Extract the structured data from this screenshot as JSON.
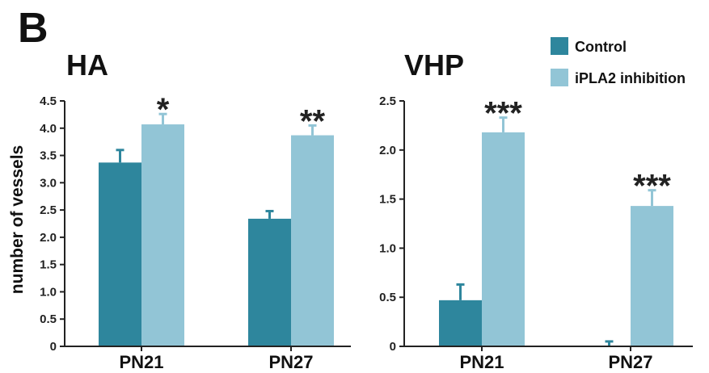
{
  "panel_label": "B",
  "legend": {
    "items": [
      {
        "label": "Control",
        "color": "#2e869d"
      },
      {
        "label": "iPLA2 inhibition",
        "color": "#92c5d6"
      }
    ]
  },
  "chart_data": [
    {
      "type": "bar",
      "title": "HA",
      "ylabel": "number of vessels",
      "xlabel": "",
      "categories": [
        "PN21",
        "PN27"
      ],
      "ylim": [
        0,
        4.5
      ],
      "yticks": [
        0,
        0.5,
        1.0,
        1.5,
        2.0,
        2.5,
        3.0,
        3.5,
        4.0,
        4.5
      ],
      "ytick_labels": [
        "0",
        "0.5",
        "1.0",
        "1.5",
        "2.0",
        "2.5",
        "3.0",
        "3.5",
        "4.0",
        "4.5"
      ],
      "series": [
        {
          "name": "Control",
          "color": "#2e869d",
          "values": [
            3.37,
            2.34
          ],
          "errors": [
            0.23,
            0.14
          ]
        },
        {
          "name": "iPLA2 inhibition",
          "color": "#92c5d6",
          "values": [
            4.07,
            3.87
          ],
          "errors": [
            0.19,
            0.18
          ]
        }
      ],
      "annotations": [
        "*",
        "**"
      ],
      "legend": "top-right",
      "grid": false
    },
    {
      "type": "bar",
      "title": "VHP",
      "ylabel": "",
      "xlabel": "",
      "categories": [
        "PN21",
        "PN27"
      ],
      "ylim": [
        0,
        2.5
      ],
      "yticks": [
        0,
        0.5,
        1.0,
        1.5,
        2.0,
        2.5
      ],
      "ytick_labels": [
        "0",
        "0.5",
        "1.0",
        "1.5",
        "2.0",
        "2.5"
      ],
      "series": [
        {
          "name": "Control",
          "color": "#2e869d",
          "values": [
            0.47,
            0.0
          ],
          "errors": [
            0.16,
            0.05
          ]
        },
        {
          "name": "iPLA2 inhibition",
          "color": "#92c5d6",
          "values": [
            2.18,
            1.43
          ],
          "errors": [
            0.15,
            0.16
          ]
        }
      ],
      "annotations": [
        "***",
        "***"
      ],
      "legend": "top-right",
      "grid": false
    }
  ]
}
